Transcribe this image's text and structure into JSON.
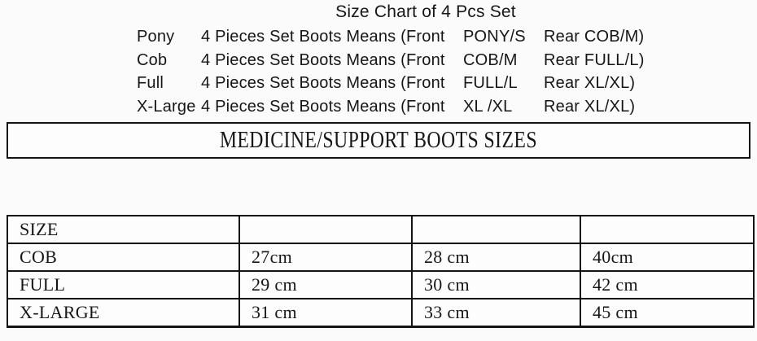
{
  "title": "Size Chart of 4 Pcs Set",
  "set_lines": [
    {
      "label": "Pony",
      "means": "4 Pieces Set Boots Means (Front",
      "front": "PONY/S",
      "rear": "Rear COB/M)"
    },
    {
      "label": "Cob",
      "means": "4 Pieces Set Boots Means (Front",
      "front": "COB/M",
      "rear": "Rear FULL/L)"
    },
    {
      "label": "Full",
      "means": "4 Pieces Set Boots Means (Front",
      "front": "FULL/L",
      "rear": "Rear XL/XL)"
    },
    {
      "label": "X-Large",
      "means": "4 Pieces Set Boots Means (Front",
      "front": "XL /XL",
      "rear": "Rear XL/XL)"
    }
  ],
  "banner": "MEDICINE/SUPPORT BOOTS SIZES",
  "size_table": {
    "rows": [
      [
        "SIZE",
        "",
        "",
        ""
      ],
      [
        "COB",
        "27cm",
        "28 cm",
        "40cm"
      ],
      [
        "FULL",
        "29 cm",
        "30 cm",
        "42 cm"
      ],
      [
        "X-LARGE",
        "31 cm",
        "33 cm",
        "45 cm"
      ]
    ]
  },
  "colors": {
    "background": "#fbfbfb",
    "border": "#141414",
    "text": "#161616"
  }
}
